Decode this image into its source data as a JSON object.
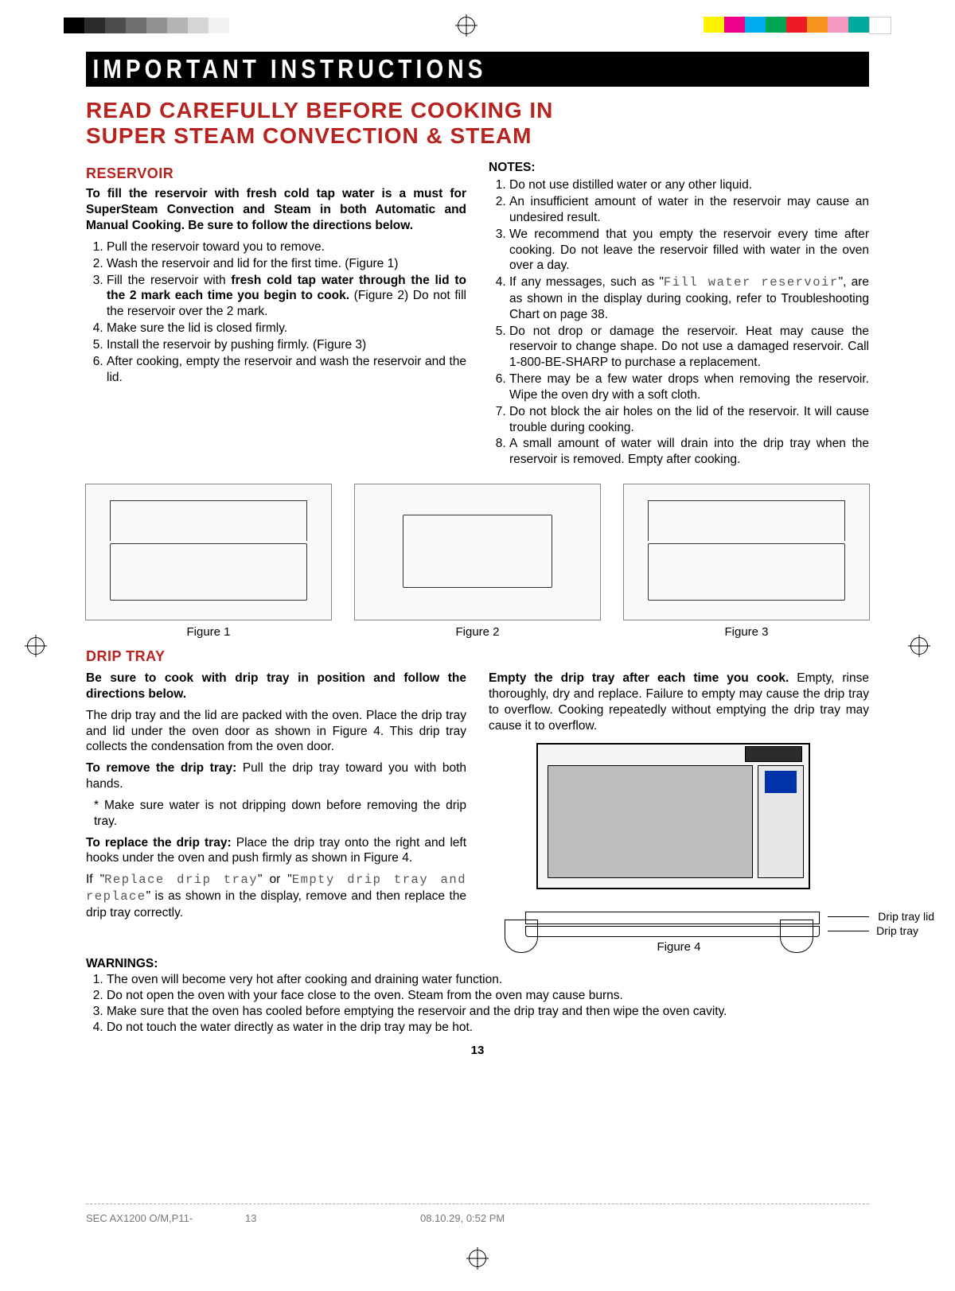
{
  "colors": {
    "accent": "#b7241f",
    "black": "#000000",
    "gray": "#888888",
    "footer_text": "#777777",
    "mono_swatches": [
      "#000000",
      "#2b2b2b",
      "#4d4d4d",
      "#6f6f6f",
      "#919191",
      "#b3b3b3",
      "#d5d5d5",
      "#f2f2f2"
    ],
    "color_swatches": [
      "#fff200",
      "#ec008c",
      "#00aeef",
      "#00a651",
      "#ed1c24",
      "#f7941d",
      "#f49ac1",
      "#00a99d",
      "#ffffff"
    ]
  },
  "banner": "IMPORTANT INSTRUCTIONS",
  "heading_line1": "READ CAREFULLY BEFORE COOKING IN",
  "heading_line2": "SUPER STEAM CONVECTION & STEAM",
  "reservoir": {
    "title": "RESERVOIR",
    "intro": "To fill the reservoir with fresh cold tap water is a must for SuperSteam Convection and Steam in both Automatic and Manual Cooking. Be sure to follow the directions below.",
    "steps": [
      "Pull the reservoir toward you to remove.",
      "Wash the reservoir and lid for the first time. (Figure 1)",
      "Fill the reservoir with <strong>fresh cold tap water through the lid to the 2 mark each time you begin to cook.</strong> (Figure 2) Do not fill the reservoir over the 2 mark.",
      "Make sure the lid is closed firmly.",
      "Install the reservoir by pushing firmly. (Figure 3)",
      "After cooking, empty the reservoir and wash the reservoir and the lid."
    ]
  },
  "notes": {
    "label": "NOTES:",
    "items": [
      "Do not use distilled water or any other liquid.",
      "An insufficient amount of water in the reservoir may cause an undesired result.",
      "We recommend that you empty the reservoir every time after cooking. Do not leave the reservoir filled with water in the oven over a day.",
      "If any messages, such as \"<span class='dispmsg'>Fill water reservoir</span>\", are as shown in the display during cooking, refer to Troubleshooting Chart on page 38.",
      "Do not drop or damage the reservoir. Heat may cause the reservoir to change shape. Do not use a damaged reservoir. Call 1-800-BE-SHARP to purchase a replacement.",
      "There may be a few water drops when removing the reservoir. Wipe the oven dry with a soft cloth.",
      "Do not block the air holes on the lid of the reservoir. It will cause trouble during cooking.",
      "A small amount of water will drain into the drip tray when the reservoir is removed. Empty after cooking."
    ]
  },
  "figures": {
    "f1": "Figure 1",
    "f2": "Figure 2",
    "f3": "Figure 3",
    "f4": "Figure 4",
    "drip_tray_lid_label": "Drip tray lid",
    "drip_tray_label": "Drip tray"
  },
  "driptray": {
    "title": "DRIP TRAY",
    "intro": "Be sure to cook with drip tray in position and follow the directions below.",
    "p1": "The drip tray and the lid are packed with the oven. Place the drip tray and lid under the oven door as shown in Figure 4. This drip tray collects the condensation from the oven door.",
    "p2": "<strong>To remove the drip tray:</strong> Pull the drip tray toward you with both hands.",
    "p3": "* Make sure water is not dripping down before removing the drip tray.",
    "p4": "<strong>To replace the drip tray:</strong> Place the drip tray onto the right and left hooks under the oven and push firmly as shown in Figure 4.",
    "p5": "If \"<span class='dispmsg'>Replace drip tray</span>\" or \"<span class='dispmsg'>Empty drip tray and replace</span>\" is as shown in the display, remove and then replace the drip tray correctly.",
    "right_p": "<strong>Empty the drip tray after each time you cook.</strong> Empty, rinse thoroughly, dry and replace. Failure to empty may cause the drip tray to overflow. Cooking repeatedly without emptying the drip tray may cause it to overflow."
  },
  "warnings": {
    "label": "WARNINGS:",
    "items": [
      "The oven will become very hot after cooking and draining water function.",
      "Do not open the oven with your face close to the oven. Steam from the oven may cause burns.",
      "Make sure that the oven has cooled before emptying the reservoir and the drip tray and then wipe the oven cavity.",
      "Do not touch the water directly as water in the drip tray may be hot."
    ]
  },
  "page_number": "13",
  "footer": {
    "left": "SEC AX1200 O/M,P11-",
    "mid": "13",
    "right": "08.10.29, 0:52 PM"
  }
}
